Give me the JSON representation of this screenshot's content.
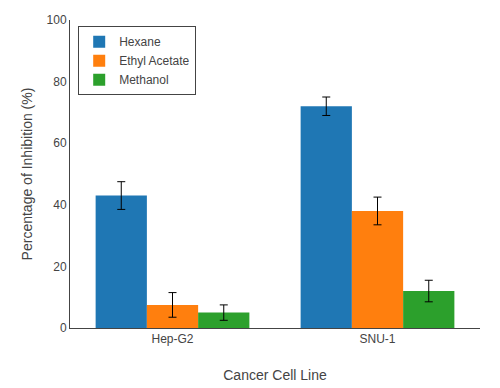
{
  "chart_data": {
    "type": "bar",
    "categories": [
      "Hep-G2",
      "SNU-1"
    ],
    "series": [
      {
        "name": "Hexane",
        "values": [
          43.0,
          72.0
        ],
        "errors": [
          4.5,
          3.0
        ]
      },
      {
        "name": "Ethyl Acetate",
        "values": [
          7.5,
          38.0
        ],
        "errors": [
          4.0,
          4.5
        ]
      },
      {
        "name": "Methanol",
        "values": [
          5.0,
          12.0
        ],
        "errors": [
          2.5,
          3.5
        ]
      }
    ],
    "xlabel": "Cancer Cell Line",
    "ylabel": "Percentage of Inhibition (%)",
    "ylim": [
      0,
      100
    ],
    "yticks": [
      0,
      20,
      40,
      60,
      80,
      100
    ],
    "grid": false,
    "legend": "upper left"
  }
}
